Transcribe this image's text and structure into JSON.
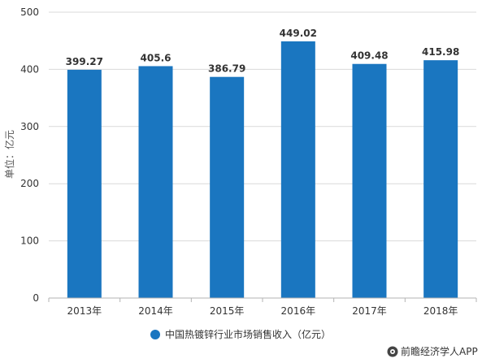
{
  "chart_data": {
    "type": "bar",
    "categories": [
      "2013年",
      "2014年",
      "2015年",
      "2016年",
      "2017年",
      "2018年"
    ],
    "series": [
      {
        "name": "中国热镀锌行业市场销售收入（亿元）",
        "values": [
          399.27,
          405.6,
          386.79,
          449.02,
          409.48,
          415.98
        ],
        "value_labels": [
          "399.27",
          "405.6",
          "386.79",
          "449.02",
          "409.48",
          "415.98"
        ],
        "color": "#1a76c0"
      }
    ],
    "ylabel": "单位：亿元",
    "ylim": [
      0,
      500
    ],
    "yticks": [
      0,
      100,
      200,
      300,
      400,
      500
    ],
    "grid": true,
    "legend_position": "bottom-center"
  },
  "credit": "前瞻经济学人APP",
  "colors": {
    "bar": "#1a76c0",
    "grid": "#d9d9d9",
    "axis": "#b3b3b3"
  }
}
